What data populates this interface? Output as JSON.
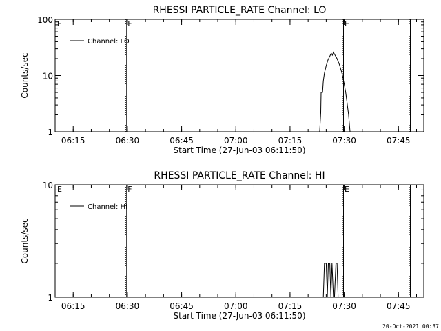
{
  "timestamp": "20-Oct-2021 00:37",
  "chart_data": [
    {
      "type": "line",
      "title": "RHESSI PARTICLE_RATE Channel: LO",
      "xlabel": "Start Time (27-Jun-03 06:11:50)",
      "ylabel": "Counts/sec",
      "yscale": "log",
      "xlim": [
        "06:10",
        "07:52"
      ],
      "ylim": [
        1,
        100
      ],
      "xticks": [
        "06:15",
        "06:30",
        "06:45",
        "07:00",
        "07:15",
        "07:30",
        "07:45"
      ],
      "yticks": [
        {
          "value": 1,
          "label": "1"
        },
        {
          "value": 10,
          "label": "10"
        },
        {
          "value": 100,
          "label": "100"
        }
      ],
      "legend": {
        "label": "Channel: LO",
        "placement": "top-left"
      },
      "markers": [
        {
          "x": "06:10",
          "label": "E",
          "style": "none"
        },
        {
          "x": "06:29.5",
          "label": "F",
          "style": "dotted"
        },
        {
          "x": "07:29.5",
          "label": "E",
          "style": "dotted"
        },
        {
          "x": "07:48",
          "label": "",
          "style": "dotted"
        }
      ],
      "series": [
        {
          "name": "Channel: LO",
          "points": [
            [
              "07:23.2",
              1
            ],
            [
              "07:23.5",
              2.2
            ],
            [
              "07:23.6",
              5
            ],
            [
              "07:24",
              5
            ],
            [
              "07:24.2",
              8
            ],
            [
              "07:24.5",
              11
            ],
            [
              "07:25",
              15
            ],
            [
              "07:25.5",
              19
            ],
            [
              "07:26",
              22
            ],
            [
              "07:26.4",
              25
            ],
            [
              "07:26.7",
              23
            ],
            [
              "07:27",
              26
            ],
            [
              "07:27.3",
              24
            ],
            [
              "07:28",
              20
            ],
            [
              "07:28.6",
              16
            ],
            [
              "07:29.2",
              12
            ],
            [
              "07:29.6",
              9.5
            ],
            [
              "07:30",
              7
            ],
            [
              "07:30.4",
              5
            ],
            [
              "07:30.8",
              3.2
            ],
            [
              "07:31.2",
              2
            ],
            [
              "07:31.6",
              1
            ]
          ]
        }
      ]
    },
    {
      "type": "line",
      "title": "RHESSI PARTICLE_RATE Channel: HI",
      "xlabel": "Start Time (27-Jun-03 06:11:50)",
      "ylabel": "Counts/sec",
      "yscale": "log",
      "xlim": [
        "06:10",
        "07:52"
      ],
      "ylim": [
        1,
        10
      ],
      "xticks": [
        "06:15",
        "06:30",
        "06:45",
        "07:00",
        "07:15",
        "07:30",
        "07:45"
      ],
      "yticks": [
        {
          "value": 1,
          "label": "1"
        },
        {
          "value": 10,
          "label": "10"
        }
      ],
      "legend": {
        "label": "Channel: HI",
        "placement": "top-left"
      },
      "markers": [
        {
          "x": "06:10",
          "label": "E",
          "style": "none"
        },
        {
          "x": "06:29.5",
          "label": "F",
          "style": "dotted"
        },
        {
          "x": "07:29.5",
          "label": "E",
          "style": "dotted"
        },
        {
          "x": "07:48",
          "label": "",
          "style": "dotted"
        }
      ],
      "series": [
        {
          "name": "Channel: HI",
          "points": [
            [
              "07:24.2",
              1
            ],
            [
              "07:24.5",
              2
            ],
            [
              "07:25",
              2
            ],
            [
              "07:25.3",
              1
            ],
            [
              "07:25.6",
              2
            ],
            [
              "07:26",
              2
            ],
            [
              "07:26.3",
              1
            ],
            [
              "07:26.6",
              2
            ],
            [
              "07:27",
              1
            ],
            [
              "07:27.3",
              1
            ],
            [
              "07:27.7",
              2
            ],
            [
              "07:28",
              2
            ],
            [
              "07:28.3",
              1
            ]
          ]
        }
      ]
    }
  ]
}
